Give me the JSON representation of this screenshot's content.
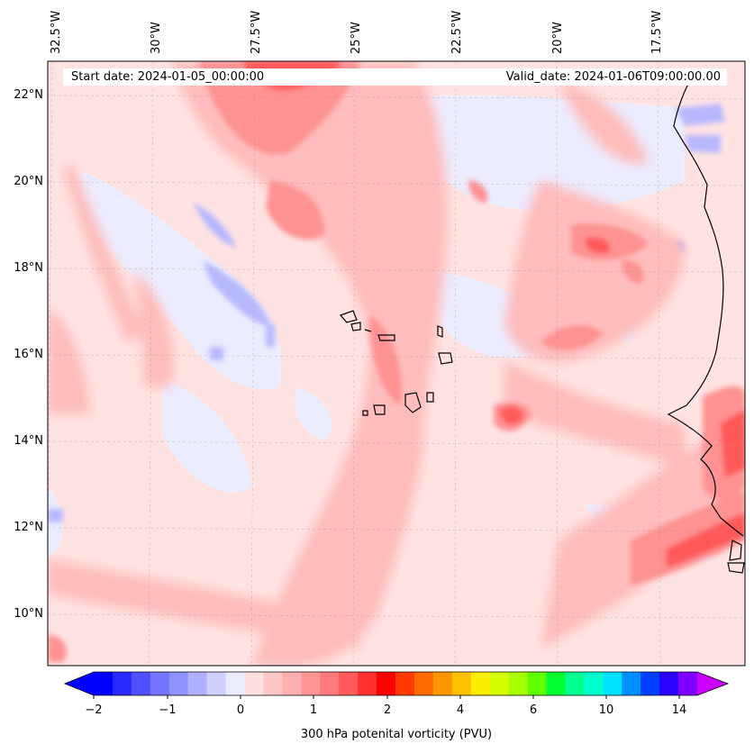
{
  "map": {
    "title_start": "Start date: 2024-01-05_00:00:00",
    "title_valid": "Valid_date: 2024-01-06T09:00:00.00",
    "lon_labels": [
      "32.5°W",
      "30°W",
      "27.5°W",
      "25°W",
      "22.5°W",
      "20°W",
      "17.5°W"
    ],
    "lat_labels": [
      "22°N",
      "20°N",
      "18°N",
      "16°N",
      "14°N",
      "12°N",
      "10°N"
    ],
    "field": "300 hPa potential vorticity",
    "coastline_color": "#000000"
  },
  "colorbar": {
    "label": "300 hPa potenital vorticity (PVU)",
    "tick_labels": [
      "−2",
      "−1",
      "0",
      "1",
      "2",
      "4",
      "6",
      "10",
      "14"
    ],
    "colors": [
      "#0000ff",
      "#2a2aff",
      "#5050ff",
      "#7575ff",
      "#9090ff",
      "#b0b0ff",
      "#d0d0ff",
      "#ececff",
      "#ffe0e0",
      "#ffc8c8",
      "#ffb0b0",
      "#ff9595",
      "#ff7a7a",
      "#ff5a5a",
      "#ff3030",
      "#ff0000",
      "#ff3a00",
      "#ff6a00",
      "#ff9600",
      "#ffc000",
      "#ffee00",
      "#d6ff00",
      "#a8ff00",
      "#60ff00",
      "#00ff30",
      "#00ff90",
      "#00ffcc",
      "#00e0ff",
      "#0090ff",
      "#0040ff",
      "#2a00ff",
      "#8000ff"
    ],
    "under_color": "#0000ff",
    "over_color": "#cc00ff"
  }
}
